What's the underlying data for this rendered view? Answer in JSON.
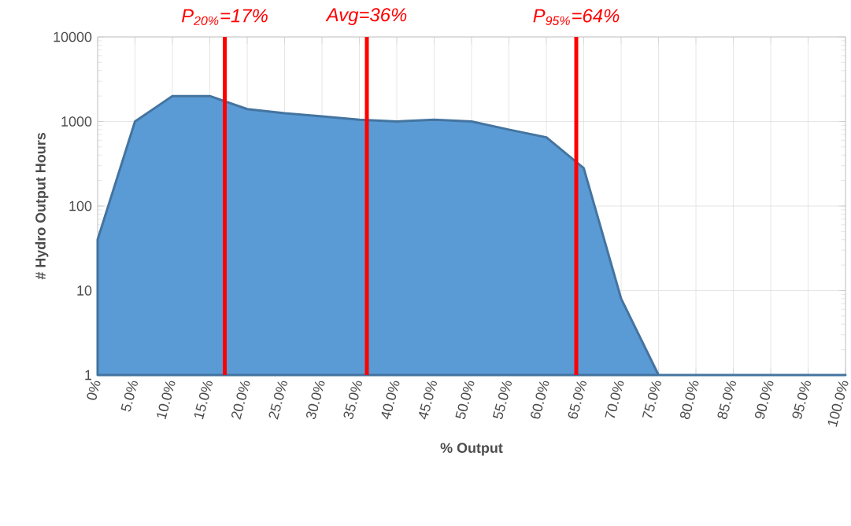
{
  "chart_data": {
    "type": "area",
    "xlabel": "% Output",
    "ylabel": "# Hydro Output Hours",
    "x": [
      0,
      5,
      10,
      15,
      20,
      25,
      30,
      35,
      40,
      45,
      50,
      55,
      60,
      65,
      70,
      75,
      80,
      85,
      90,
      95,
      100
    ],
    "values": [
      40,
      1000,
      2000,
      2000,
      1400,
      1250,
      1150,
      1050,
      1000,
      1050,
      1000,
      800,
      650,
      280,
      8,
      1,
      1,
      1,
      1,
      1,
      1
    ],
    "color": "#5b9bd5",
    "log": "y",
    "grid": true,
    "xlim": [
      0,
      100
    ],
    "xticks": [
      {
        "value": 0,
        "label": "0%"
      },
      {
        "value": 5,
        "label": "5.0%"
      },
      {
        "value": 10,
        "label": "10.0%"
      },
      {
        "value": 15,
        "label": "15.0%"
      },
      {
        "value": 20,
        "label": "20.0%"
      },
      {
        "value": 25,
        "label": "25.0%"
      },
      {
        "value": 30,
        "label": "30.0%"
      },
      {
        "value": 35,
        "label": "35.0%"
      },
      {
        "value": 40,
        "label": "40.0%"
      },
      {
        "value": 45,
        "label": "45.0%"
      },
      {
        "value": 50,
        "label": "50.0%"
      },
      {
        "value": 55,
        "label": "55.0%"
      },
      {
        "value": 60,
        "label": "60.0%"
      },
      {
        "value": 65,
        "label": "65.0%"
      },
      {
        "value": 70,
        "label": "70.0%"
      },
      {
        "value": 75,
        "label": "75.0%"
      },
      {
        "value": 80,
        "label": "80.0%"
      },
      {
        "value": 85,
        "label": "85.0%"
      },
      {
        "value": 90,
        "label": "90.0%"
      },
      {
        "value": 95,
        "label": "95.0%"
      },
      {
        "value": 100,
        "label": "100.0%"
      }
    ],
    "ylim": [
      1,
      10000
    ],
    "yticks": [
      1,
      10,
      100,
      1000,
      10000
    ],
    "ref_lines": [
      {
        "axis": "x",
        "value": 17,
        "label": "P$_{20%}$=17%",
        "color": "#ff0000"
      },
      {
        "axis": "x",
        "value": 36,
        "label": "Avg=36%",
        "color": "#ff0000"
      },
      {
        "axis": "x",
        "value": 64,
        "label": "P$_{95%}$=64%",
        "color": "#ff0000"
      }
    ]
  }
}
